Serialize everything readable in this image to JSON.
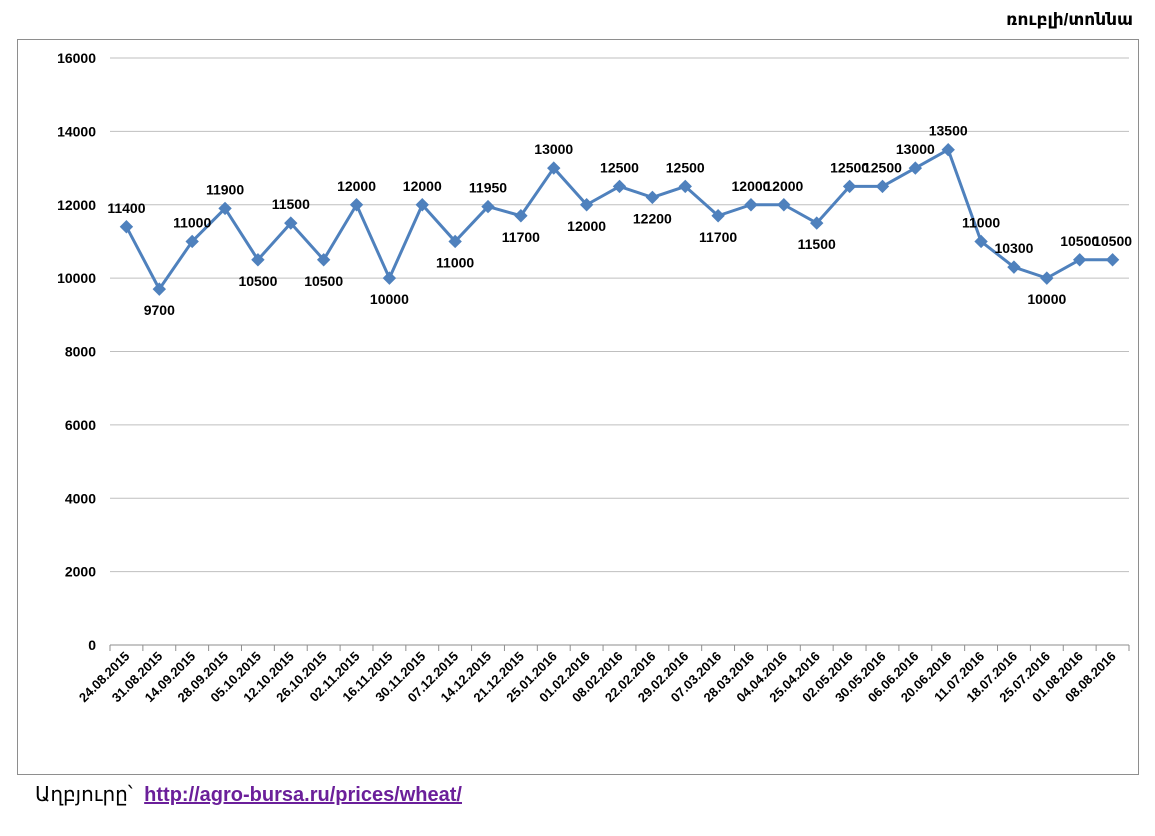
{
  "unit": "ռուբլի/տոննա",
  "source": {
    "label": "Աղբյուրը՝",
    "link": "http://agro-bursa.ru/prices/wheat/"
  },
  "colors": {
    "series": "#4f81bd",
    "grid": "#bfbfbf",
    "link": "#6b1f9a"
  },
  "chart_data": {
    "type": "line",
    "title": "",
    "xlabel": "",
    "ylabel": "ռուբլի/տոննա",
    "ylim": [
      0,
      16000
    ],
    "yticks": [
      0,
      2000,
      4000,
      6000,
      8000,
      10000,
      12000,
      14000,
      16000
    ],
    "grid": true,
    "legend": "none",
    "categories": [
      "24.08.2015",
      "31.08.2015",
      "14.09.2015",
      "28.09.2015",
      "05.10.2015",
      "12.10.2015",
      "26.10.2015",
      "02.11.2015",
      "16.11.2015",
      "30.11.2015",
      "07.12.2015",
      "14.12.2015",
      "21.12.2015",
      "25.01.2016",
      "01.02.2016",
      "08.02.2016",
      "22.02.2016",
      "29.02.2016",
      "07.03.2016",
      "28.03.2016",
      "04.04.2016",
      "25.04.2016",
      "02.05.2016",
      "30.05.2016",
      "06.06.2016",
      "20.06.2016",
      "11.07.2016",
      "18.07.2016",
      "25.07.2016",
      "01.08.2016",
      "08.08.2016"
    ],
    "series": [
      {
        "values": [
          11400,
          9700,
          11000,
          11900,
          10500,
          11500,
          10500,
          12000,
          10000,
          12000,
          11000,
          11950,
          11700,
          13000,
          12000,
          12500,
          12200,
          12500,
          11700,
          12000,
          12000,
          11500,
          12500,
          12500,
          13000,
          13500,
          11000,
          10300,
          10000,
          10500,
          10500
        ],
        "labels": [
          "11400",
          "9700",
          "11000",
          "11900",
          "10500",
          "11500",
          "10500",
          "12000",
          "10000",
          "12000",
          "11000",
          "11950",
          "11700",
          "13000",
          "12000",
          "12500",
          "12200",
          "12500",
          "11700",
          "12000",
          "12000",
          "11500",
          "12500",
          "12500",
          "13000",
          "13500",
          "11000",
          "10300",
          "10000",
          "10500",
          "10500"
        ]
      }
    ]
  }
}
